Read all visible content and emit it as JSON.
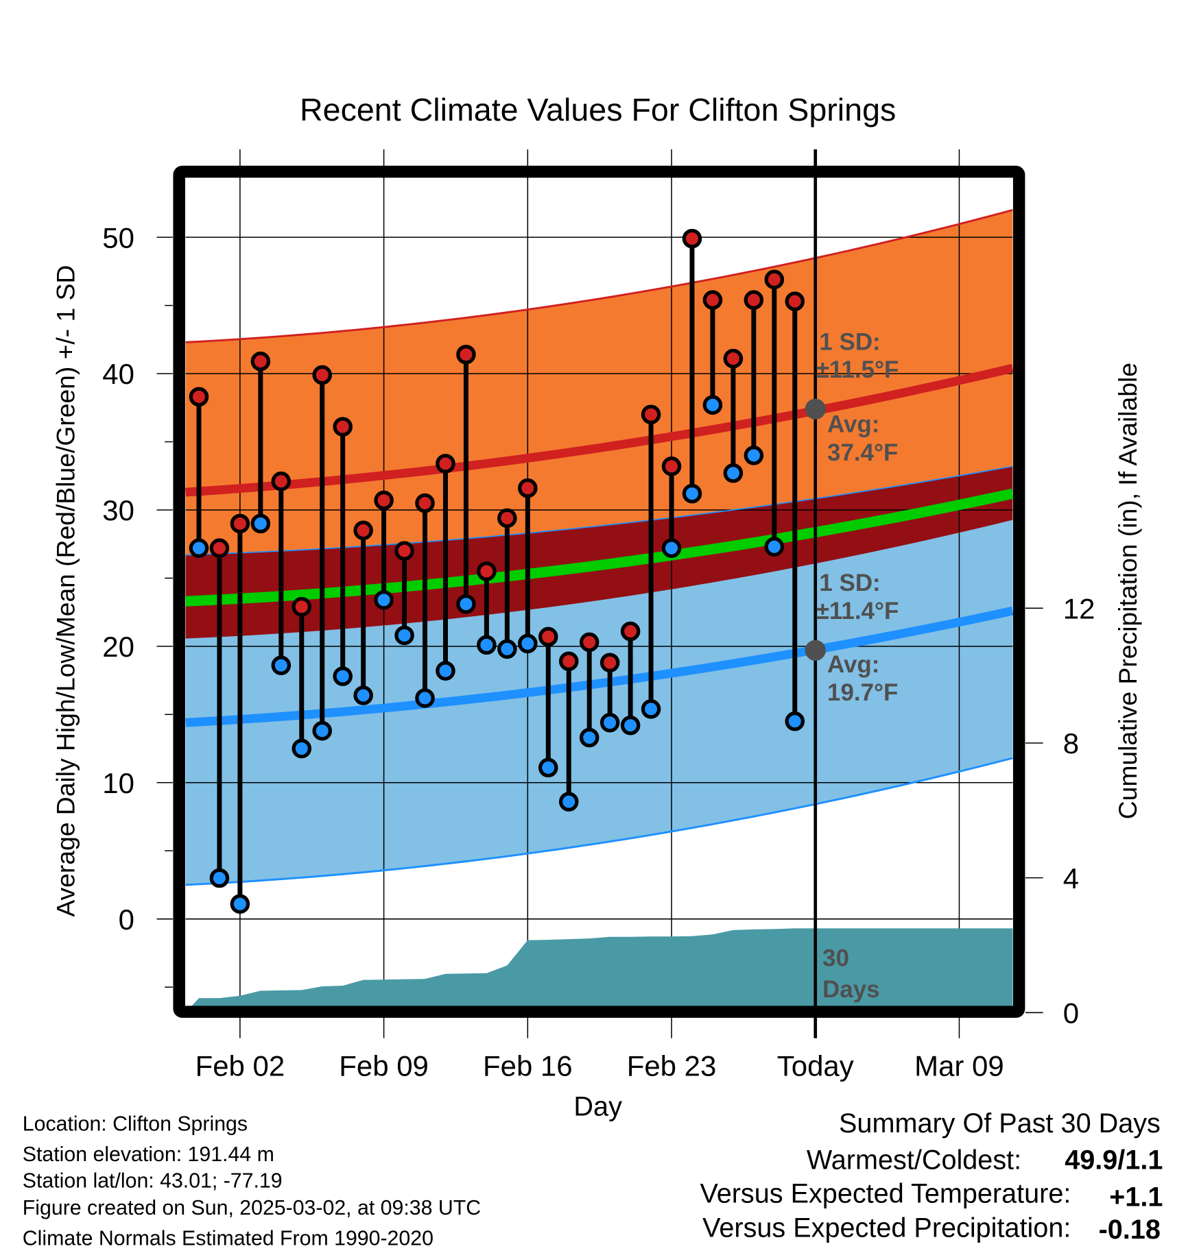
{
  "chart_data": {
    "type": "line",
    "title": "Recent Climate Values For Clifton Springs",
    "xlabel": "Day",
    "ylabel": "Average Daily High/Low/Mean (Red/Blue/Green) +/- 1 SD",
    "y2label": "Cumulative Precipitation (in), If Available",
    "ylim": [
      -6.4,
      54.4
    ],
    "y2lim": [
      0,
      24.6
    ],
    "xlim_days_from_feb02": [
      -2.65,
      37.6
    ],
    "yticks": [
      "0",
      "10",
      "20",
      "30",
      "40",
      "50"
    ],
    "ytick_values": [
      0,
      10,
      20,
      30,
      40,
      50
    ],
    "y2ticks": [
      "0",
      "4",
      "8",
      "12"
    ],
    "y2tick_values": [
      0,
      4,
      8,
      12
    ],
    "xticks": [
      "Feb 02",
      "Feb 09",
      "Feb 16",
      "Feb 23",
      "Today",
      "Mar 09"
    ],
    "xtick_days": [
      0,
      7,
      14,
      21,
      28,
      35
    ],
    "grid": true,
    "days_from_feb02": [
      -2,
      -1,
      0,
      1,
      2,
      3,
      4,
      5,
      6,
      7,
      8,
      9,
      10,
      11,
      12,
      13,
      14,
      15,
      16,
      17,
      18,
      19,
      20,
      21,
      22,
      23,
      24,
      25,
      26,
      27
    ],
    "highs": [
      38.3,
      27.2,
      29.0,
      40.9,
      32.1,
      22.9,
      39.9,
      36.1,
      28.5,
      30.7,
      27.0,
      30.5,
      33.4,
      41.4,
      25.5,
      29.4,
      31.6,
      20.7,
      18.9,
      20.3,
      18.8,
      21.1,
      37.0,
      33.2,
      49.9,
      45.4,
      41.1,
      45.4,
      46.9,
      45.3
    ],
    "lows": [
      27.2,
      3.0,
      1.1,
      29.0,
      18.6,
      12.5,
      13.8,
      17.8,
      16.4,
      23.4,
      20.8,
      16.2,
      18.2,
      23.1,
      20.1,
      19.8,
      20.2,
      11.1,
      8.6,
      13.3,
      14.4,
      14.2,
      15.4,
      27.2,
      31.2,
      37.7,
      32.7,
      34.0,
      27.3,
      14.5
    ],
    "normals": {
      "days": [
        -2.65,
        14,
        37.6
      ],
      "high_plus_sd": [
        42.3,
        44.7,
        52.0
      ],
      "high_avg": [
        31.3,
        33.8,
        40.4
      ],
      "high_minus_sd": [
        26.7,
        28.3,
        33.2
      ],
      "mean": [
        23.3,
        25.3,
        31.2
      ],
      "low_plus_sd": [
        20.6,
        22.7,
        29.3
      ],
      "low_avg": [
        14.4,
        16.6,
        22.6
      ],
      "low_minus_sd": [
        2.5,
        4.8,
        11.8
      ]
    },
    "precip_cumulative": {
      "days": [
        -2.65,
        -2,
        -1,
        0,
        1,
        2,
        3,
        4,
        5,
        6,
        7,
        8,
        9,
        10,
        11,
        12,
        13,
        14,
        15,
        16,
        17,
        18,
        19,
        20,
        21,
        22,
        23,
        24,
        25,
        26,
        27,
        37.6
      ],
      "values": [
        0,
        0.43,
        0.43,
        0.5,
        0.65,
        0.66,
        0.67,
        0.78,
        0.8,
        0.97,
        0.98,
        0.99,
        1.0,
        1.15,
        1.16,
        1.17,
        1.4,
        2.15,
        2.16,
        2.18,
        2.2,
        2.25,
        2.25,
        2.26,
        2.26,
        2.27,
        2.32,
        2.45,
        2.47,
        2.48,
        2.5,
        2.5
      ]
    },
    "annotations": {
      "high_sd_label": "1 SD:",
      "high_sd_value": "±11.5°F",
      "high_avg_label": "Avg:",
      "high_avg_value": "37.4°F",
      "high_avg_today": 37.4,
      "low_sd_label": "1 SD:",
      "low_sd_value": "±11.4°F",
      "low_avg_label": "Avg:",
      "low_avg_value": "19.7°F",
      "low_avg_today": 19.7,
      "period_line1": "30",
      "period_line2": "Days"
    },
    "colors": {
      "high_band": "#F47A30",
      "mid_band": "#930F14",
      "low_band": "#82C0E6",
      "high_line": "#D02020",
      "low_line": "#1E90FF",
      "mean_line": "#00CC00",
      "precip": "#4A9AA5",
      "annotation": "#505050"
    }
  },
  "info": {
    "location": "Location: Clifton Springs",
    "elevation": "Station elevation: 191.44 m",
    "latlon": "Station lat/lon: 43.01; -77.19",
    "created": "Figure created on Sun, 2025-03-02, at 09:38 UTC",
    "normals": "Climate Normals Estimated From 1990-2020"
  },
  "summary": {
    "title": "Summary Of Past 30 Days",
    "warmest_label": "Warmest/Coldest:",
    "warmest_value": "49.9/1.1",
    "temp_label": "Versus Expected Temperature:",
    "temp_value": "+1.1",
    "temp_color": "#D02020",
    "precip_label": "Versus Expected Precipitation:",
    "precip_value": "-0.18",
    "precip_color": "#A0522D"
  }
}
